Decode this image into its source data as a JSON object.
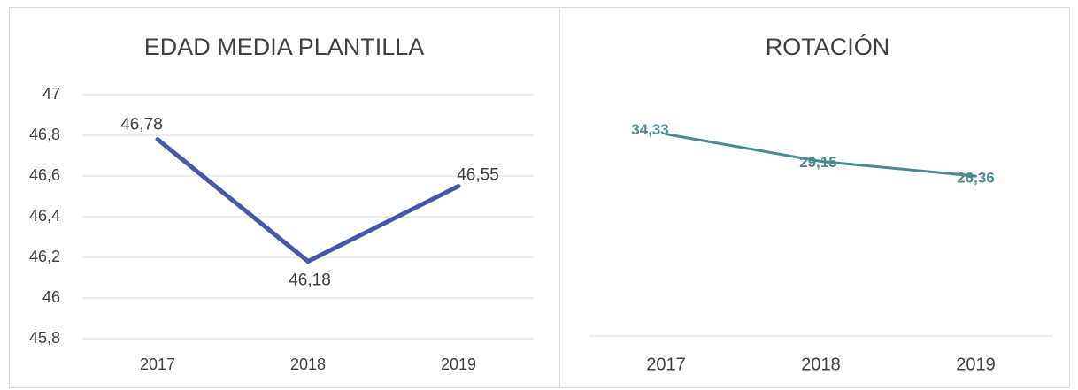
{
  "chart_data": [
    {
      "type": "line",
      "title": "EDAD MEDIA PLANTILLA",
      "categories": [
        "2017",
        "2018",
        "2019"
      ],
      "series": [
        {
          "color": "#4559a4",
          "values": [
            46.78,
            46.18,
            46.55
          ],
          "value_labels": [
            "46,78",
            "46,18",
            "46,55"
          ]
        }
      ],
      "ylim": [
        45.8,
        47
      ],
      "yticks": [
        {
          "value": 45.8,
          "label": "45,8"
        },
        46,
        {
          "value": 46.2,
          "label": "46,2"
        },
        {
          "value": 46.4,
          "label": "46,4"
        },
        {
          "value": 46.6,
          "label": "46,6"
        },
        {
          "value": 46.8,
          "label": "46,8"
        },
        47
      ],
      "grid": true
    },
    {
      "type": "line",
      "title": "ROTACIÓN",
      "categories": [
        "2017",
        "2018",
        "2019"
      ],
      "series": [
        {
          "color": "#4a8a8f",
          "values": [
            34.33,
            29.15,
            26.36
          ],
          "value_labels": [
            "34,33",
            "29,15",
            "26,36"
          ]
        }
      ],
      "ylim": [
        -4,
        43
      ],
      "grid": false
    }
  ]
}
